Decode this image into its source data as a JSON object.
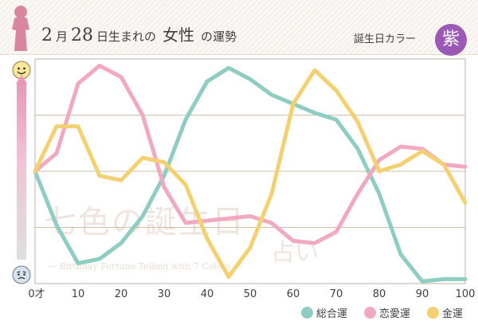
{
  "header": {
    "month": "2",
    "month_unit": "月",
    "day": "28",
    "suffix_a": "日生まれの",
    "keyword": "女性",
    "suffix_b": "の運勢",
    "birth_color_label": "誕生日カラー",
    "birth_color_char": "紫",
    "birth_color_hex": "#9b59b6"
  },
  "watermark": {
    "main": "七色の誕生日",
    "sub": "占い",
    "english": "— Birthday Fortune Telling with 7 Colors —"
  },
  "icons": {
    "top": "happy-face-icon",
    "bottom": "worried-face-icon"
  },
  "chart_data": {
    "type": "line",
    "title": "",
    "x": [
      0,
      5,
      10,
      15,
      20,
      25,
      30,
      35,
      40,
      45,
      50,
      55,
      60,
      65,
      70,
      75,
      80,
      85,
      90,
      95,
      100
    ],
    "x_tick_labels": [
      "0才",
      "10",
      "20",
      "30",
      "40",
      "50",
      "60",
      "70",
      "80",
      "90",
      "100"
    ],
    "x_ticks": [
      0,
      10,
      20,
      30,
      40,
      50,
      60,
      70,
      80,
      90,
      100
    ],
    "xlim": [
      0,
      100
    ],
    "ylim": [
      0,
      100
    ],
    "grid": true,
    "legend_position": "bottom-right",
    "series": [
      {
        "name": "総合運",
        "color": "#8fcdc3",
        "values": [
          50,
          26,
          9,
          11,
          18,
          30,
          48,
          73,
          90,
          96,
          91,
          84,
          80,
          76,
          73,
          60,
          40,
          13,
          1,
          2,
          2
        ]
      },
      {
        "name": "恋愛運",
        "color": "#f0a9c1",
        "values": [
          50,
          58,
          89,
          97,
          92,
          75,
          43,
          27,
          28,
          29,
          30,
          27,
          19,
          18,
          23,
          40,
          55,
          61,
          60,
          53,
          52
        ]
      },
      {
        "name": "金運",
        "color": "#f3d172",
        "values": [
          50,
          70,
          70,
          48,
          46,
          56,
          54,
          44,
          20,
          3,
          16,
          40,
          80,
          95,
          86,
          72,
          50,
          53,
          59,
          53,
          36
        ]
      }
    ]
  }
}
